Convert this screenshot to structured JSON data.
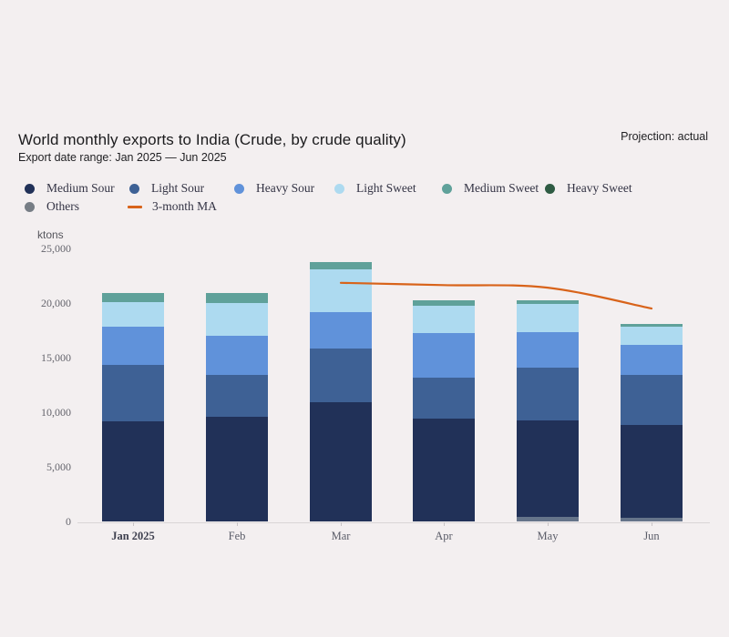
{
  "header": {
    "title": "World monthly exports to India (Crude, by crude quality)",
    "subtitle": "Export date range: Jan 2025 — Jun 2025",
    "projection_label": "Projection: actual"
  },
  "legend": {
    "items": [
      {
        "label": "Medium Sour",
        "color": "#213158",
        "marker": "dot"
      },
      {
        "label": "Light Sour",
        "color": "#3e6195",
        "marker": "dot"
      },
      {
        "label": "Heavy Sour",
        "color": "#6092da",
        "marker": "dot"
      },
      {
        "label": "Light Sweet",
        "color": "#addaf0",
        "marker": "dot"
      },
      {
        "label": "Medium Sweet",
        "color": "#5fa19a",
        "marker": "dot"
      },
      {
        "label": "Heavy Sweet",
        "color": "#2e5b43",
        "marker": "dot"
      },
      {
        "label": "Others",
        "color": "#767d85",
        "marker": "dot"
      },
      {
        "label": "3-month MA",
        "color": "#d8631a",
        "marker": "line"
      }
    ]
  },
  "chart_data": {
    "type": "bar",
    "stacked": true,
    "unit": "ktons",
    "ylabel": "ktons",
    "categories": [
      "Jan 2025",
      "Feb",
      "Mar",
      "Apr",
      "May",
      "Jun"
    ],
    "series": [
      {
        "name": "Others",
        "color": "#65748a",
        "values": [
          0,
          0,
          0,
          0,
          450,
          300
        ]
      },
      {
        "name": "Medium Sour",
        "color": "#213158",
        "values": [
          9200,
          9600,
          10900,
          9400,
          8800,
          8500
        ]
      },
      {
        "name": "Light Sour",
        "color": "#3e6195",
        "values": [
          5100,
          3850,
          4900,
          3750,
          4800,
          4650
        ]
      },
      {
        "name": "Heavy Sour",
        "color": "#6092da",
        "values": [
          3500,
          3580,
          3400,
          4100,
          3250,
          2750
        ]
      },
      {
        "name": "Light Sweet",
        "color": "#addaf0",
        "values": [
          2250,
          3000,
          3900,
          2500,
          2600,
          1600
        ]
      },
      {
        "name": "Medium Sweet",
        "color": "#5fa19a",
        "values": [
          830,
          900,
          670,
          500,
          330,
          250
        ]
      },
      {
        "name": "Heavy Sweet",
        "color": "#2e5b43",
        "values": [
          0,
          0,
          0,
          0,
          0,
          0
        ]
      }
    ],
    "totals": [
      20880,
      20930,
      23770,
      20250,
      20230,
      18050
    ],
    "line_series": {
      "name": "3-month MA",
      "color": "#d8631a",
      "x": [
        "Mar",
        "Apr",
        "May",
        "Jun"
      ],
      "values": [
        21850,
        21640,
        21410,
        19500
      ]
    },
    "yticks": [
      0,
      5000,
      10000,
      15000,
      20000,
      25000
    ],
    "ylim": [
      0,
      25000
    ],
    "grid": false,
    "legend_position": "top"
  }
}
